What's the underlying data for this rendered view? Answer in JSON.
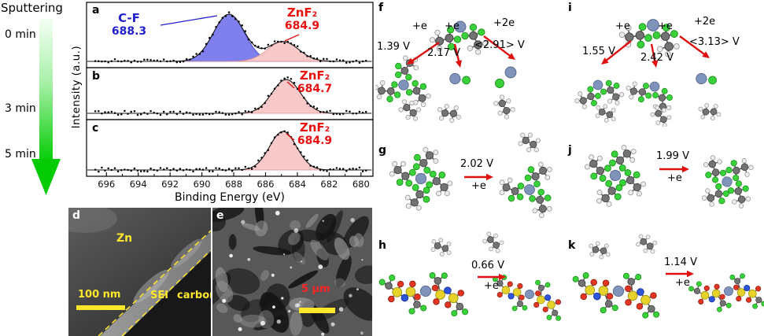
{
  "sputtering": {
    "title": "Sputtering",
    "times": [
      "0 min",
      "3 min",
      "5 min"
    ]
  },
  "xps": {
    "xlabel": "Binding Energy (eV)",
    "ylabel": "Intensity (a.u.)",
    "x_ticks": [
      "696",
      "694",
      "692",
      "690",
      "688",
      "686",
      "684",
      "682",
      "680"
    ],
    "annotations": {
      "a_cf": {
        "name": "C-F",
        "value": "688.3"
      },
      "a_znf2": {
        "name": "ZnF₂",
        "value": "684.9"
      },
      "b_znf2": {
        "name": "ZnF₂",
        "value": "684.7"
      },
      "c_znf2": {
        "name": "ZnF₂",
        "value": "684.9"
      }
    }
  },
  "chart_data": [
    {
      "type": "line",
      "panel": "a",
      "xlabel": "Binding Energy (eV)",
      "ylabel": "Intensity (a.u.)",
      "x_range": [
        696,
        680
      ],
      "x_ticks": [
        696,
        694,
        692,
        690,
        688,
        686,
        684,
        682,
        680
      ],
      "peaks": [
        {
          "name": "C-F",
          "center_eV": 688.3,
          "rel_height": 1.0,
          "fwhm_eV": 2.3,
          "fill": "#7f7fee",
          "stroke": "#3a3ab8"
        },
        {
          "name": "ZnF₂",
          "center_eV": 684.9,
          "rel_height": 0.42,
          "fwhm_eV": 2.3,
          "fill": "#f9c9c9",
          "stroke": "#dd8f8f"
        }
      ]
    },
    {
      "type": "line",
      "panel": "b",
      "x_range": [
        696,
        680
      ],
      "peaks": [
        {
          "name": "ZnF₂",
          "center_eV": 684.7,
          "rel_height": 1.0,
          "fwhm_eV": 2.1,
          "fill": "#f9c9c9",
          "stroke": "#dd8f8f"
        }
      ]
    },
    {
      "type": "line",
      "panel": "c",
      "x_range": [
        696,
        680
      ],
      "peaks": [
        {
          "name": "ZnF₂",
          "center_eV": 684.9,
          "rel_height": 1.0,
          "fwhm_eV": 2.0,
          "fill": "#f9c9c9",
          "stroke": "#dd8f8f"
        }
      ]
    }
  ],
  "micrographs": {
    "d": {
      "letter": "d",
      "region_labels": [
        "Zn",
        "SEI",
        "carbon"
      ],
      "scale_bar": "100 nm"
    },
    "e": {
      "letter": "e",
      "scale_bar": "5 μm"
    }
  },
  "reactions": {
    "f": {
      "letter": "f",
      "branches": [
        {
          "electrons": "+e",
          "voltage": "1.39 V"
        },
        {
          "electrons": "+e",
          "voltage": "2.17 V"
        },
        {
          "electrons": "+2e",
          "voltage": "<2.91> V"
        }
      ]
    },
    "i": {
      "letter": "i",
      "branches": [
        {
          "electrons": "+e",
          "voltage": "1.55 V"
        },
        {
          "electrons": "+e",
          "voltage": "2.42 V"
        },
        {
          "electrons": "+2e",
          "voltage": "<3.13> V"
        }
      ]
    },
    "g": {
      "letter": "g",
      "electrons": "+e",
      "voltage": "2.02 V"
    },
    "j": {
      "letter": "j",
      "electrons": "+e",
      "voltage": "1.99 V"
    },
    "h": {
      "letter": "h",
      "electrons": "+e",
      "voltage": "0.66 V"
    },
    "k": {
      "letter": "k",
      "electrons": "+e",
      "voltage": "1.14 V"
    }
  },
  "colors": {
    "cf_blue": "#2222cc",
    "znf2_red": "#e81010",
    "peak_blue": "#7f7fee",
    "peak_pink": "#f9c9c9",
    "arrow_red": "#e01010",
    "sputter_green": "#06cd06",
    "scalebar_yellow": "#ffe72a",
    "atom_carbon": "#737373",
    "atom_hydrogen": "#ededed",
    "atom_fluorine": "#3ad23a",
    "atom_zinc": "#8093bb",
    "atom_oxygen": "#e23522",
    "atom_sulfur": "#e6d22b",
    "atom_nitrogen": "#2f55dd"
  }
}
